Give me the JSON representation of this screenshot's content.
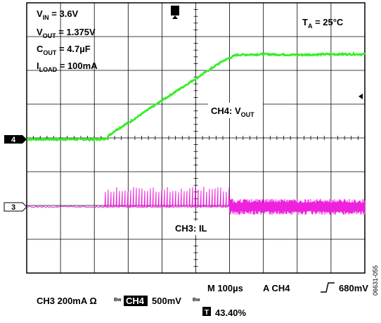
{
  "chart_data": {
    "type": "oscilloscope",
    "x_unit_per_div": "100µs",
    "x_divisions": 10,
    "y_divisions": 8,
    "grid": true,
    "conditions": {
      "vin_sym": "V",
      "vin_sub": "IN",
      "vin_val": " = 3.6V",
      "vout_sym": "V",
      "vout_sub": "OUT",
      "vout_val": " = 1.375V",
      "cout_sym": "C",
      "cout_sub": "OUT",
      "cout_val": " = 4.7µF",
      "iload_sym": "I",
      "iload_sub": "LOAD",
      "iload_val": " = 100mA",
      "ta_sym": "T",
      "ta_sub": "A",
      "ta_val": " = 25°C"
    },
    "ch4": {
      "label_sym": "CH4: V",
      "label_sub": "OUT",
      "marker": "4",
      "color": "#33ee22",
      "scale": "500mV",
      "points_div": [
        [
          0,
          0
        ],
        [
          2.3,
          0
        ],
        [
          2.6,
          0.25
        ],
        [
          3.1,
          0.55
        ],
        [
          4.0,
          1.15
        ],
        [
          5.0,
          1.8
        ],
        [
          5.8,
          2.32
        ],
        [
          6.2,
          2.5
        ],
        [
          7.0,
          2.52
        ],
        [
          8.0,
          2.5
        ],
        [
          9.0,
          2.52
        ],
        [
          10,
          2.52
        ]
      ]
    },
    "ch3": {
      "label": "CH3: IL",
      "marker": "3",
      "color": "#ee22dd",
      "scale": "200mA",
      "baseline_div": 0,
      "spike_start_div": 2.3,
      "spike_end_div": 6.0,
      "spike_height_div": 0.6,
      "ripple_start_div": 6.0,
      "ripple_band_div": [
        -0.2,
        0.2
      ]
    },
    "footer": {
      "timebase": "M 100µs",
      "trigger_src": "A  CH4",
      "trigger_level": "680mV",
      "ch3_text": "CH3  200mA Ω",
      "bw": "Bw",
      "ch4_box": "CH4",
      "ch4_scale": "500mV",
      "trigger_pos": "43.40%",
      "trig_icon": "T"
    },
    "side_code": "06631-055"
  }
}
